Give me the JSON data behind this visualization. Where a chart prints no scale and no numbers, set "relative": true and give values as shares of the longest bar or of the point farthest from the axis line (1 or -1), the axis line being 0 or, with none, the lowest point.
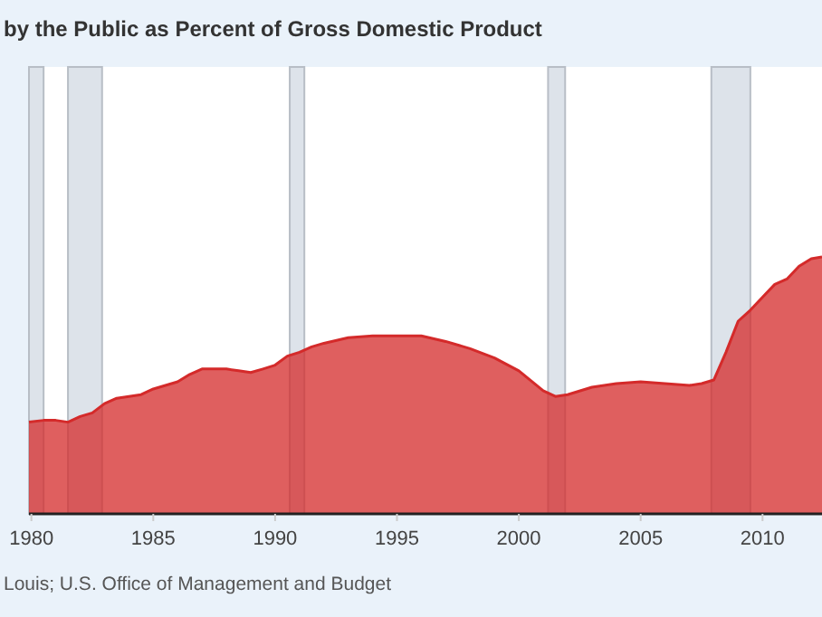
{
  "chart_data": {
    "type": "area",
    "title": "by the Public as Percent of Gross Domestic Product",
    "relative": true,
    "x": [
      1979.9,
      1980.5,
      1981,
      1981.5,
      1982,
      1982.5,
      1983,
      1983.5,
      1984,
      1984.5,
      1985,
      1985.5,
      1986,
      1986.5,
      1987,
      1987.5,
      1988,
      1988.5,
      1989,
      1989.5,
      1990,
      1990.5,
      1991,
      1991.5,
      1992,
      1993,
      1994,
      1995,
      1996,
      1997,
      1998,
      1999,
      2000,
      2001,
      2001.5,
      2002,
      2003,
      2004,
      2005,
      2006,
      2007,
      2007.5,
      2008,
      2008.5,
      2009,
      2009.5,
      2010,
      2010.5,
      2011,
      2011.5,
      2012,
      2012.44
    ],
    "series": [
      {
        "color": "#d42a2a",
        "values": [
          0.357,
          0.364,
          0.364,
          0.357,
          0.379,
          0.393,
          0.429,
          0.45,
          0.457,
          0.464,
          0.486,
          0.5,
          0.514,
          0.543,
          0.564,
          0.564,
          0.564,
          0.557,
          0.55,
          0.564,
          0.579,
          0.614,
          0.629,
          0.65,
          0.664,
          0.686,
          0.693,
          0.693,
          0.693,
          0.671,
          0.643,
          0.607,
          0.557,
          0.479,
          0.457,
          0.464,
          0.493,
          0.507,
          0.514,
          0.507,
          0.5,
          0.507,
          0.521,
          0.629,
          0.75,
          0.793,
          0.843,
          0.893,
          0.914,
          0.964,
          0.993,
          1
        ]
      }
    ],
    "xlim": [
      1979.9,
      2012.44
    ],
    "xticks": [
      1980,
      1985,
      1990,
      1995,
      2000,
      2005,
      2010
    ],
    "bands": [
      {
        "axis": "x",
        "from": 1979.9,
        "to": 1980.5,
        "color": "#dde3ea"
      },
      {
        "axis": "x",
        "from": 1981.5,
        "to": 1982.9,
        "color": "#dde3ea"
      },
      {
        "axis": "x",
        "from": 1990.6,
        "to": 1991.2,
        "color": "#dde3ea"
      },
      {
        "axis": "x",
        "from": 2001.2,
        "to": 2001.9,
        "color": "#dde3ea"
      },
      {
        "axis": "x",
        "from": 2007.9,
        "to": 2009.5,
        "color": "#dde3ea"
      }
    ],
    "annotations": [
      "Louis; U.S. Office of Management and Budget"
    ]
  }
}
